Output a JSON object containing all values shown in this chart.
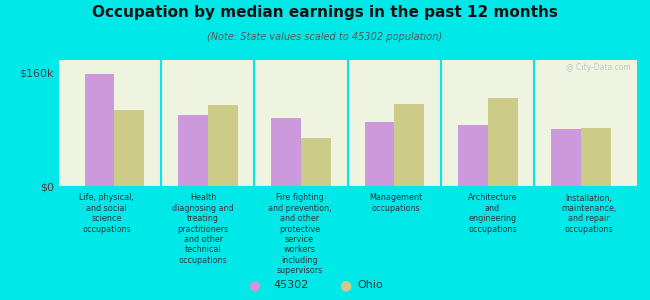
{
  "title": "Occupation by median earnings in the past 12 months",
  "subtitle": "(Note: State values scaled to 45302 population)",
  "background_color": "#00e8e8",
  "plot_bg_color": "#eef4e0",
  "plot_bg_gradient_top": "#d8eec8",
  "categories": [
    "Life, physical,\nand social\nscience\noccupations",
    "Health\ndiagnosing and\ntreating\npractitioners\nand other\ntechnical\noccupations",
    "Fire fighting\nand prevention,\nand other\nprotective\nservice\nworkers\nincluding\nsupervisors",
    "Management\noccupations",
    "Architecture\nand\nengineering\noccupations",
    "Installation,\nmaintenance,\nand repair\noccupations"
  ],
  "values_45302": [
    158000,
    100000,
    96000,
    90000,
    86000,
    80000
  ],
  "values_ohio": [
    108000,
    114000,
    68000,
    116000,
    124000,
    82000
  ],
  "color_45302": "#cc99dd",
  "color_ohio": "#cccc88",
  "yticks": [
    0,
    160000
  ],
  "ytick_labels": [
    "$0",
    "$160k"
  ],
  "ylim": [
    0,
    178000
  ],
  "legend_labels": [
    "45302",
    "Ohio"
  ],
  "watermark": "@ City-Data.com"
}
